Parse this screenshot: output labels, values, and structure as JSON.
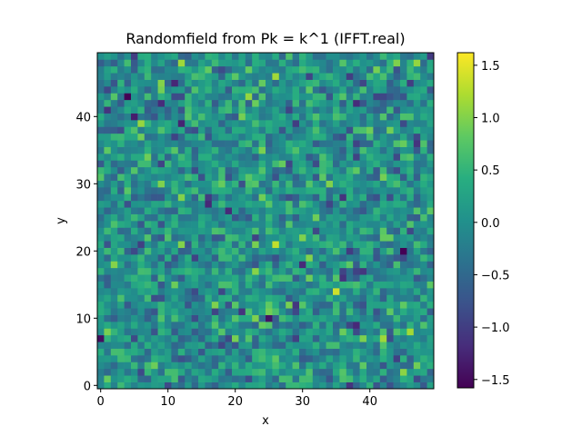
{
  "chart_data": {
    "type": "heatmap",
    "title": "Randomfield from Pk = k^1 (IFFT.real)",
    "xlabel": "x",
    "ylabel": "y",
    "grid_size": [
      50,
      50
    ],
    "xlim": [
      -0.5,
      49.5
    ],
    "ylim": [
      -0.5,
      49.5
    ],
    "x_ticks": [
      0,
      10,
      20,
      30,
      40
    ],
    "y_ticks": [
      0,
      10,
      20,
      30,
      40
    ],
    "colormap": "viridis",
    "origin": "lower",
    "value_range": [
      -1.58,
      1.62
    ],
    "colorbar_ticks": [
      -1.5,
      -1.0,
      -0.5,
      0.0,
      0.5,
      1.0,
      1.5
    ],
    "colorbar_labels": [
      "−1.5",
      "−1.0",
      "−0.5",
      "0.0",
      "0.5",
      "1.0",
      "1.5"
    ],
    "grid": false
  }
}
